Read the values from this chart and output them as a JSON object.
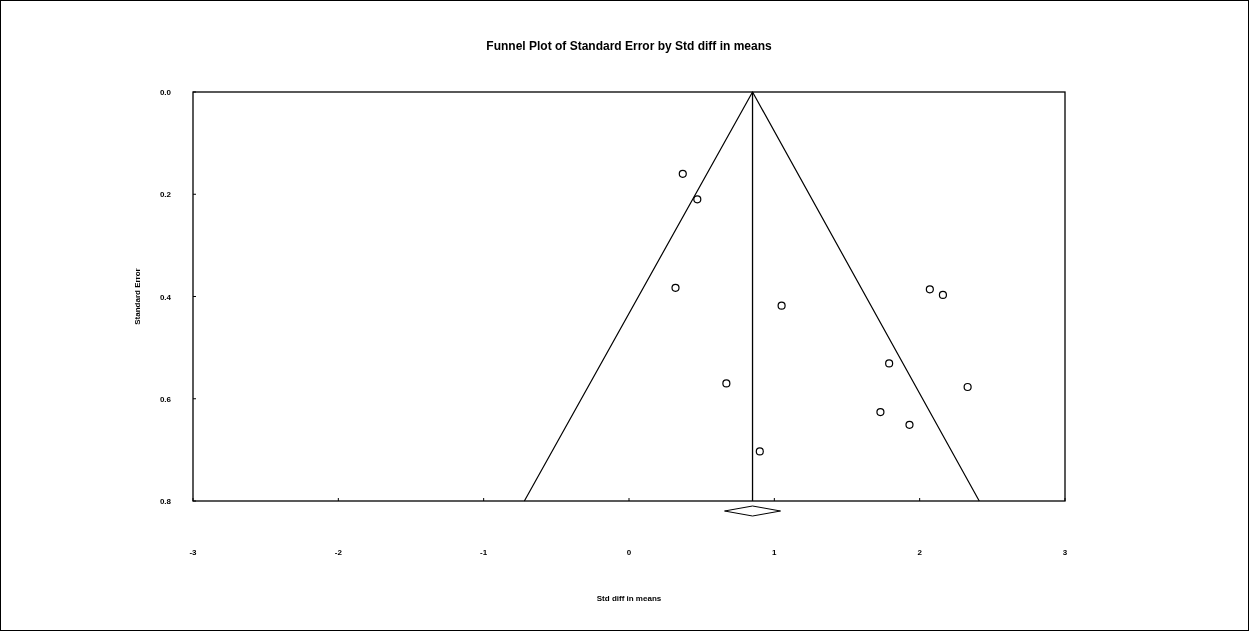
{
  "chart_data": {
    "type": "scatter",
    "title": "Funnel Plot of Standard Error by Std diff in means",
    "xlabel": "Std diff in means",
    "ylabel": "Standard Error",
    "xlim": [
      -3,
      3
    ],
    "xticks": [
      -3,
      -2,
      -1,
      0,
      1,
      2,
      3
    ],
    "ylim": [
      0.8,
      0
    ],
    "yticks": [
      {
        "value": 0,
        "label": "0.0"
      },
      {
        "value": 0.2,
        "label": "0.2"
      },
      {
        "value": 0.4,
        "label": "0.4"
      },
      {
        "value": 0.6,
        "label": "0.6"
      },
      {
        "value": 0.8,
        "label": "0.8"
      }
    ],
    "grid": false,
    "series": [
      {
        "type": "scatter",
        "marker": "circle",
        "color": "#000000",
        "x": [
          0.37,
          0.47,
          0.32,
          0.67,
          1.05,
          0.9,
          2.07,
          2.16,
          1.79,
          2.33,
          1.73,
          1.93
        ],
        "values": [
          0.16,
          0.21,
          0.383,
          0.57,
          0.418,
          0.703,
          0.386,
          0.397,
          0.531,
          0.577,
          0.626,
          0.651
        ]
      },
      {
        "type": "line",
        "marker": "none",
        "line_style": "solid",
        "color": "#000000",
        "x": [
          -0.72,
          0.85,
          2.41
        ],
        "values": [
          0.8,
          0,
          0.8
        ]
      }
    ],
    "ref_lines": [
      {
        "axis": "x",
        "value": 0.85,
        "color": "#000000"
      }
    ]
  }
}
